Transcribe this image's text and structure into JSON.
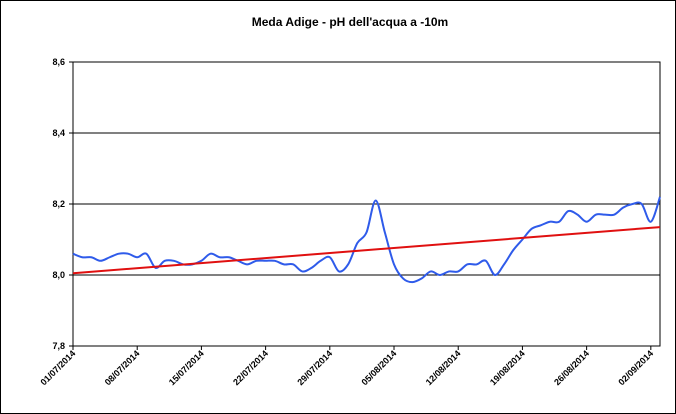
{
  "chart_data": {
    "type": "line",
    "title": "Meda Adige - pH dell'acqua a -10m",
    "x": [
      "01/07/2014",
      "02/07/2014",
      "03/07/2014",
      "04/07/2014",
      "05/07/2014",
      "06/07/2014",
      "07/07/2014",
      "08/07/2014",
      "09/07/2014",
      "10/07/2014",
      "11/07/2014",
      "12/07/2014",
      "13/07/2014",
      "14/07/2014",
      "15/07/2014",
      "16/07/2014",
      "17/07/2014",
      "18/07/2014",
      "19/07/2014",
      "20/07/2014",
      "21/07/2014",
      "22/07/2014",
      "23/07/2014",
      "24/07/2014",
      "25/07/2014",
      "26/07/2014",
      "27/07/2014",
      "28/07/2014",
      "29/07/2014",
      "30/07/2014",
      "31/07/2014",
      "01/08/2014",
      "02/08/2014",
      "03/08/2014",
      "04/08/2014",
      "05/08/2014",
      "06/08/2014",
      "07/08/2014",
      "08/08/2014",
      "09/08/2014",
      "10/08/2014",
      "11/08/2014",
      "12/08/2014",
      "13/08/2014",
      "14/08/2014",
      "15/08/2014",
      "16/08/2014",
      "17/08/2014",
      "18/08/2014",
      "19/08/2014",
      "20/08/2014",
      "21/08/2014",
      "22/08/2014",
      "23/08/2014",
      "24/08/2014",
      "25/08/2014",
      "26/08/2014",
      "27/08/2014",
      "28/08/2014",
      "29/08/2014",
      "30/08/2014",
      "31/08/2014",
      "01/09/2014",
      "02/09/2014",
      "03/09/2014"
    ],
    "series": [
      {
        "color": "#2f5bea",
        "values": [
          8.06,
          8.05,
          8.05,
          8.04,
          8.05,
          8.06,
          8.06,
          8.05,
          8.06,
          8.02,
          8.04,
          8.04,
          8.03,
          8.03,
          8.04,
          8.06,
          8.05,
          8.05,
          8.04,
          8.03,
          8.04,
          8.04,
          8.04,
          8.03,
          8.03,
          8.01,
          8.02,
          8.04,
          8.05,
          8.01,
          8.03,
          8.09,
          8.12,
          8.21,
          8.12,
          8.03,
          7.99,
          7.98,
          7.99,
          8.01,
          8.0,
          8.01,
          8.01,
          8.03,
          8.03,
          8.04,
          8.0,
          8.03,
          8.07,
          8.1,
          8.13,
          8.14,
          8.15,
          8.15,
          8.18,
          8.17,
          8.15,
          8.17,
          8.17,
          8.17,
          8.19,
          8.2,
          8.2,
          8.15,
          8.22
        ]
      },
      {
        "color": "#e01010",
        "x": [
          "01/07/2014",
          "03/09/2014"
        ],
        "values": [
          8.005,
          8.135
        ]
      }
    ],
    "xlim": [
      "01/07/2014",
      "03/09/2014"
    ],
    "xticks": [
      "01/07/2014",
      "08/07/2014",
      "15/07/2014",
      "22/07/2014",
      "29/07/2014",
      "05/08/2014",
      "12/08/2014",
      "19/08/2014",
      "26/08/2014",
      "02/09/2014"
    ],
    "ylim": [
      7.8,
      8.6
    ],
    "yticks": [
      {
        "value": 7.8,
        "label": "7,8"
      },
      {
        "value": 8.0,
        "label": "8,0"
      },
      {
        "value": 8.2,
        "label": "8,2"
      },
      {
        "value": 8.4,
        "label": "8,4"
      },
      {
        "value": 8.6,
        "label": "8,6"
      }
    ],
    "grid": true
  }
}
